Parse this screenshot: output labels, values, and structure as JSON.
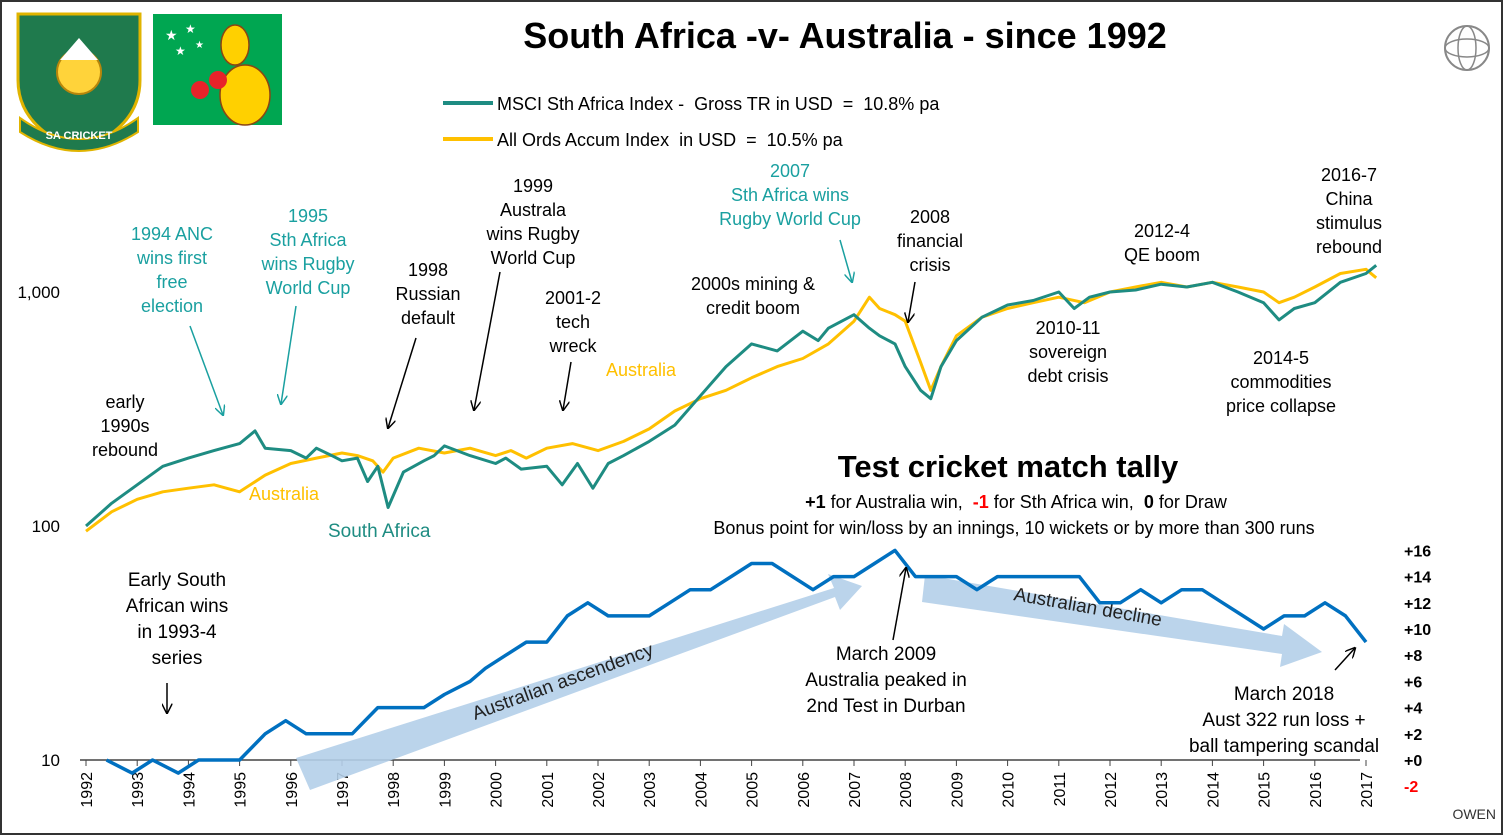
{
  "title": "South Africa -v- Australia - since 1992",
  "watermark": "OWEN",
  "colors": {
    "sa": "#1e8c82",
    "aus": "#ffc000",
    "tally": "#0070c0",
    "teal_text": "#1aa0a0",
    "arrow_fill": "#b4cfe9",
    "negative": "#ff0000"
  },
  "legend": [
    {
      "label": "MSCI Sth Africa Index -  Gross TR in USD  =  10.8% pa",
      "color": "#1e8c82"
    },
    {
      "label": "All Ords Accum Index  in USD  =  10.5% pa",
      "color": "#ffc000"
    }
  ],
  "series_labels": {
    "australia_top": "Australia",
    "australia_bottom": "Australia",
    "south_africa": "South Africa"
  },
  "annotations": [
    {
      "lines": [
        "early",
        "1990s",
        "rebound"
      ],
      "color": "black"
    },
    {
      "lines": [
        "1994 ANC",
        "wins first",
        "free",
        "election"
      ],
      "color": "teal"
    },
    {
      "lines": [
        "1995",
        "Sth Africa",
        "wins Rugby",
        "World Cup"
      ],
      "color": "teal"
    },
    {
      "lines": [
        "1998",
        "Russian",
        "default"
      ],
      "color": "black"
    },
    {
      "lines": [
        "1999",
        "Australa",
        "wins Rugby",
        "World Cup"
      ],
      "color": "black"
    },
    {
      "lines": [
        "2001-2",
        "tech",
        "wreck"
      ],
      "color": "black"
    },
    {
      "lines": [
        "2000s mining &",
        "credit boom"
      ],
      "color": "black"
    },
    {
      "lines": [
        "2007",
        "Sth Africa wins",
        "Rugby World Cup"
      ],
      "color": "teal"
    },
    {
      "lines": [
        "2008",
        "financial",
        "crisis"
      ],
      "color": "black"
    },
    {
      "lines": [
        "2010-11",
        "sovereign",
        "debt crisis"
      ],
      "color": "black"
    },
    {
      "lines": [
        "2012-4",
        "QE boom"
      ],
      "color": "black"
    },
    {
      "lines": [
        "2014-5",
        "commodities",
        "price collapse"
      ],
      "color": "black"
    },
    {
      "lines": [
        "2016-7",
        "China",
        "stimulus",
        "rebound"
      ],
      "color": "black"
    }
  ],
  "tally": {
    "title": "Test cricket match tally",
    "rule": {
      "p1": "+1",
      "t1": " for Australia win,  ",
      "p2": "-1",
      "t2": " for Sth Africa win,  ",
      "p3": "0",
      "t3": " for Draw"
    },
    "bonus": "Bonus point for win/loss by an innings, 10 wickets or by more than 300 runs",
    "notes": [
      {
        "lines": [
          "Early South",
          "African wins",
          "in 1993-4",
          "series"
        ]
      },
      {
        "lines": [
          "March 2009",
          "Australia peaked in",
          "2nd Test in Durban"
        ]
      },
      {
        "lines": [
          "March 2018",
          "Aust 322 run loss +",
          "ball tampering scandal"
        ]
      }
    ],
    "arrows": [
      "Australian ascendency",
      "Australian decline"
    ]
  },
  "chart_data": [
    {
      "type": "line",
      "yscale": "log",
      "ylim": [
        10,
        2000
      ],
      "yticks": [
        {
          "value": 10,
          "label": "10"
        },
        {
          "value": 100,
          "label": "100"
        },
        {
          "value": 1000,
          "label": "1,000"
        }
      ],
      "xlim": [
        1992,
        2017.5
      ],
      "xticks": [
        "1992",
        "1993",
        "1994",
        "1995",
        "1996",
        "1997",
        "1998",
        "1999",
        "2000",
        "2001",
        "2002",
        "2003",
        "2004",
        "2005",
        "2006",
        "2007",
        "2008",
        "2009",
        "2010",
        "2011",
        "2012",
        "2013",
        "2014",
        "2015",
        "2016",
        "2017"
      ],
      "series": [
        {
          "name": "MSCI Sth Africa Index -  Gross TR in USD  =  10.8% pa",
          "color": "#1e8c82",
          "x": [
            1992.0,
            1992.5,
            1993.0,
            1993.5,
            1994.0,
            1994.5,
            1995.0,
            1995.3,
            1995.5,
            1996.0,
            1996.3,
            1996.5,
            1996.8,
            1997.0,
            1997.3,
            1997.5,
            1997.7,
            1997.9,
            1998.2,
            1998.6,
            1998.8,
            1999.0,
            1999.5,
            2000.0,
            2000.2,
            2000.5,
            2001.0,
            2001.3,
            2001.6,
            2001.9,
            2002.2,
            2002.5,
            2003.0,
            2003.5,
            2004.0,
            2004.5,
            2005.0,
            2005.5,
            2006.0,
            2006.3,
            2006.5,
            2007.0,
            2007.3,
            2007.5,
            2007.8,
            2008.0,
            2008.3,
            2008.5,
            2008.7,
            2009.0,
            2009.5,
            2010.0,
            2010.5,
            2011.0,
            2011.3,
            2011.6,
            2012.0,
            2012.5,
            2013.0,
            2013.5,
            2014.0,
            2014.5,
            2015.0,
            2015.3,
            2015.6,
            2016.0,
            2016.5,
            2017.0,
            2017.2
          ],
          "values": [
            100,
            125,
            150,
            180,
            195,
            210,
            225,
            255,
            215,
            210,
            195,
            215,
            200,
            190,
            195,
            155,
            180,
            120,
            170,
            190,
            200,
            220,
            200,
            185,
            195,
            175,
            180,
            150,
            185,
            145,
            185,
            200,
            230,
            270,
            360,
            480,
            600,
            560,
            680,
            620,
            700,
            800,
            700,
            650,
            600,
            480,
            380,
            350,
            480,
            620,
            780,
            880,
            920,
            1000,
            850,
            950,
            1000,
            1020,
            1080,
            1050,
            1100,
            1000,
            900,
            760,
            850,
            900,
            1100,
            1200,
            1300
          ]
        },
        {
          "name": "All Ords Accum Index  in USD  =  10.5% pa",
          "color": "#ffc000",
          "x": [
            1992.0,
            1992.5,
            1993.0,
            1993.5,
            1994.0,
            1994.5,
            1995.0,
            1995.5,
            1996.0,
            1996.5,
            1997.0,
            1997.3,
            1997.6,
            1997.8,
            1998.0,
            1998.5,
            1999.0,
            1999.5,
            2000.0,
            2000.3,
            2000.6,
            2001.0,
            2001.5,
            2002.0,
            2002.5,
            2003.0,
            2003.5,
            2004.0,
            2004.5,
            2005.0,
            2005.5,
            2006.0,
            2006.5,
            2007.0,
            2007.3,
            2007.5,
            2007.8,
            2008.0,
            2008.3,
            2008.5,
            2008.7,
            2009.0,
            2009.5,
            2010.0,
            2010.5,
            2011.0,
            2011.5,
            2012.0,
            2012.5,
            2013.0,
            2013.5,
            2014.0,
            2014.5,
            2015.0,
            2015.3,
            2015.6,
            2016.0,
            2016.5,
            2017.0,
            2017.2
          ],
          "values": [
            95,
            115,
            130,
            140,
            145,
            150,
            140,
            165,
            185,
            195,
            205,
            200,
            190,
            170,
            195,
            215,
            205,
            215,
            200,
            210,
            195,
            215,
            225,
            210,
            230,
            260,
            310,
            350,
            380,
            430,
            480,
            520,
            600,
            750,
            950,
            850,
            800,
            750,
            500,
            380,
            480,
            650,
            780,
            850,
            900,
            950,
            900,
            1000,
            1050,
            1100,
            1050,
            1100,
            1050,
            1000,
            900,
            950,
            1050,
            1200,
            1250,
            1150
          ]
        }
      ]
    },
    {
      "type": "line",
      "title": "Test cricket match tally",
      "ylim": [
        -2,
        16
      ],
      "yticks": [
        "+16",
        "+14",
        "+12",
        "+10",
        "+8",
        "+6",
        "+4",
        "+2",
        "+0",
        "-2"
      ],
      "series": [
        {
          "color": "#0070c0",
          "x": [
            1992.4,
            1992.9,
            1993.3,
            1993.8,
            1994.2,
            1994.6,
            1995.0,
            1995.5,
            1995.9,
            1996.3,
            1996.7,
            1997.2,
            1997.7,
            1998.2,
            1998.6,
            1999.0,
            1999.5,
            1999.8,
            2000.2,
            2000.6,
            2001.0,
            2001.4,
            2001.8,
            2002.2,
            2002.6,
            2003.0,
            2003.4,
            2003.8,
            2004.2,
            2004.6,
            2005.0,
            2005.4,
            2005.8,
            2006.2,
            2006.6,
            2007.0,
            2007.4,
            2007.8,
            2008.2,
            2008.6,
            2009.0,
            2009.4,
            2009.8,
            2010.2,
            2010.6,
            2011.0,
            2011.4,
            2011.8,
            2012.2,
            2012.6,
            2013.0,
            2013.4,
            2013.8,
            2014.2,
            2014.6,
            2015.0,
            2015.4,
            2015.8,
            2016.2,
            2016.6,
            2017.0
          ],
          "values": [
            0,
            -1,
            0,
            -1,
            0,
            0,
            0,
            2,
            3,
            2,
            2,
            2,
            4,
            4,
            4,
            5,
            6,
            7,
            8,
            9,
            9,
            11,
            12,
            11,
            11,
            11,
            12,
            13,
            13,
            14,
            15,
            15,
            14,
            13,
            14,
            14,
            15,
            16,
            14,
            14,
            14,
            13,
            14,
            14,
            14,
            14,
            14,
            12,
            12,
            13,
            12,
            13,
            13,
            12,
            11,
            10,
            11,
            11,
            12,
            11,
            9
          ]
        }
      ]
    }
  ]
}
